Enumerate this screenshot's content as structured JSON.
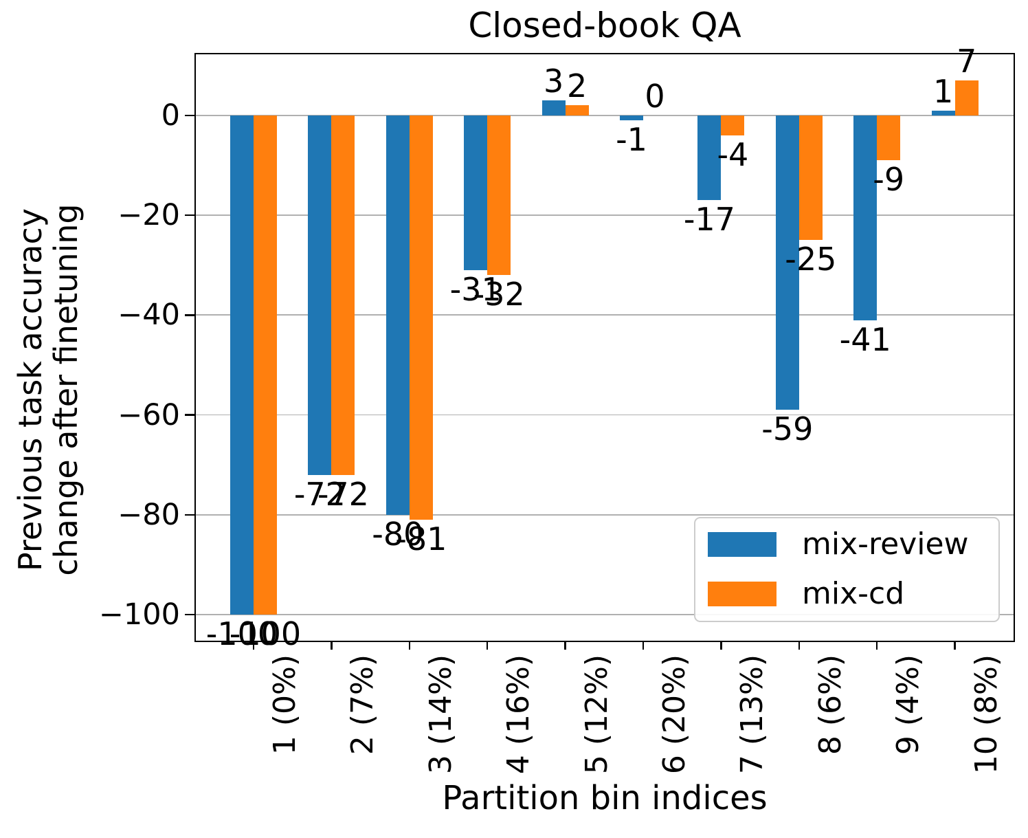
{
  "chart_data": {
    "type": "bar",
    "title": "Closed-book QA",
    "xlabel": "Partition bin indices",
    "ylabel": "Previous task accuracy\nchange after finetuning",
    "categories": [
      "1 (0%)",
      "2 (7%)",
      "3 (14%)",
      "4 (16%)",
      "5 (12%)",
      "6 (20%)",
      "7 (13%)",
      "8 (6%)",
      "9 (4%)",
      "10 (8%)"
    ],
    "series": [
      {
        "name": "mix-review",
        "color": "#1f77b4",
        "values": [
          -100,
          -72,
          -80,
          -31,
          3,
          -1,
          -17,
          -59,
          -41,
          1
        ]
      },
      {
        "name": "mix-cd",
        "color": "#ff7f0e",
        "values": [
          -100,
          -72,
          -81,
          -32,
          2,
          0,
          -4,
          -25,
          -9,
          7
        ]
      }
    ],
    "bar_value_labels_shown": true,
    "yticks": [
      0,
      -20,
      -40,
      -60,
      -80,
      -100
    ],
    "ytick_labels": [
      "0",
      "−20",
      "−40",
      "−60",
      "−80",
      "−100"
    ],
    "ylim": [
      -105.5,
      12.5
    ],
    "grid": "horizontal",
    "legend_position": "lower right",
    "colors": {
      "grid": "#b0b0b0",
      "spine": "#000000",
      "text": "#000000",
      "background": "#ffffff"
    }
  }
}
